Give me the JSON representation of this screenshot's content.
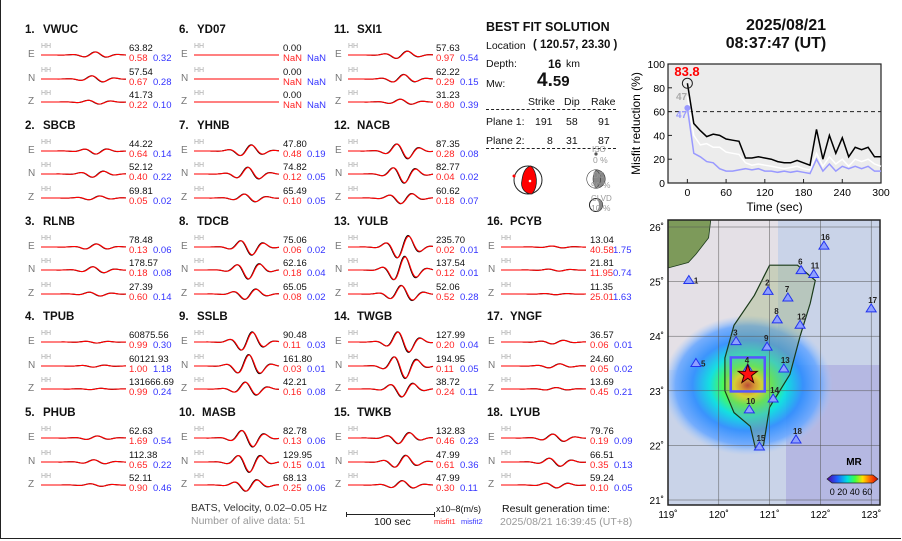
{
  "stations": [
    {
      "num": "1.",
      "name": "VWUC",
      "col": 0,
      "row": 0,
      "channels": [
        {
          "comp": "E",
          "band": "HH",
          "value": "63.82",
          "misfit1": "0.58",
          "misfit2": "0.32"
        },
        {
          "comp": "N",
          "band": "HH",
          "value": "57.54",
          "misfit1": "0.67",
          "misfit2": "0.28"
        },
        {
          "comp": "Z",
          "band": "HH",
          "value": "41.73",
          "misfit1": "0.22",
          "misfit2": "0.10"
        }
      ]
    },
    {
      "num": "2.",
      "name": "SBCB",
      "col": 0,
      "row": 1,
      "channels": [
        {
          "comp": "E",
          "band": "HH",
          "value": "44.22",
          "misfit1": "0.64",
          "misfit2": "0.14"
        },
        {
          "comp": "N",
          "band": "HH",
          "value": "52.12",
          "misfit1": "0.40",
          "misfit2": "0.22"
        },
        {
          "comp": "Z",
          "band": "HH",
          "value": "69.81",
          "misfit1": "0.05",
          "misfit2": "0.02"
        }
      ]
    },
    {
      "num": "3.",
      "name": "RLNB",
      "col": 0,
      "row": 2,
      "channels": [
        {
          "comp": "E",
          "band": "HH",
          "value": "78.48",
          "misfit1": "0.13",
          "misfit2": "0.06"
        },
        {
          "comp": "N",
          "band": "HH",
          "value": "178.57",
          "misfit1": "0.18",
          "misfit2": "0.08"
        },
        {
          "comp": "Z",
          "band": "HH",
          "value": "27.39",
          "misfit1": "0.60",
          "misfit2": "0.14"
        }
      ]
    },
    {
      "num": "4.",
      "name": "TPUB",
      "col": 0,
      "row": 3,
      "channels": [
        {
          "comp": "E",
          "band": "HH",
          "value": "60875.56",
          "misfit1": "0.99",
          "misfit2": "0.30"
        },
        {
          "comp": "N",
          "band": "HH",
          "value": "60121.93",
          "misfit1": "1.00",
          "misfit2": "1.18"
        },
        {
          "comp": "Z",
          "band": "HH",
          "value": "131666.69",
          "misfit1": "0.99",
          "misfit2": "0.24"
        }
      ]
    },
    {
      "num": "5.",
      "name": "PHUB",
      "col": 0,
      "row": 4,
      "channels": [
        {
          "comp": "E",
          "band": "HH",
          "value": "62.63",
          "misfit1": "1.69",
          "misfit2": "0.54"
        },
        {
          "comp": "N",
          "band": "HH",
          "value": "112.38",
          "misfit1": "0.65",
          "misfit2": "0.22"
        },
        {
          "comp": "Z",
          "band": "HH",
          "value": "52.11",
          "misfit1": "0.90",
          "misfit2": "0.46"
        }
      ]
    },
    {
      "num": "6.",
      "name": "YD07",
      "col": 1,
      "row": 0,
      "channels": [
        {
          "comp": "E",
          "band": "HH",
          "value": "0.00",
          "misfit1": "NaN",
          "misfit2": "NaN"
        },
        {
          "comp": "N",
          "band": "HH",
          "value": "0.00",
          "misfit1": "NaN",
          "misfit2": "NaN"
        },
        {
          "comp": "Z",
          "band": "HH",
          "value": "0.00",
          "misfit1": "NaN",
          "misfit2": "NaN"
        }
      ]
    },
    {
      "num": "7.",
      "name": "YHNB",
      "col": 1,
      "row": 1,
      "channels": [
        {
          "comp": "E",
          "band": "HH",
          "value": "47.80",
          "misfit1": "0.48",
          "misfit2": "0.19"
        },
        {
          "comp": "N",
          "band": "HH",
          "value": "74.82",
          "misfit1": "0.12",
          "misfit2": "0.05"
        },
        {
          "comp": "Z",
          "band": "HH",
          "value": "65.49",
          "misfit1": "0.10",
          "misfit2": "0.05"
        }
      ]
    },
    {
      "num": "8.",
      "name": "TDCB",
      "col": 1,
      "row": 2,
      "channels": [
        {
          "comp": "E",
          "band": "HH",
          "value": "75.06",
          "misfit1": "0.06",
          "misfit2": "0.02"
        },
        {
          "comp": "N",
          "band": "HH",
          "value": "62.16",
          "misfit1": "0.18",
          "misfit2": "0.04"
        },
        {
          "comp": "Z",
          "band": "HH",
          "value": "65.05",
          "misfit1": "0.08",
          "misfit2": "0.02"
        }
      ]
    },
    {
      "num": "9.",
      "name": "SSLB",
      "col": 1,
      "row": 3,
      "channels": [
        {
          "comp": "E",
          "band": "HH",
          "value": "90.48",
          "misfit1": "0.11",
          "misfit2": "0.03"
        },
        {
          "comp": "N",
          "band": "HH",
          "value": "161.80",
          "misfit1": "0.03",
          "misfit2": "0.01"
        },
        {
          "comp": "Z",
          "band": "HH",
          "value": "42.21",
          "misfit1": "0.16",
          "misfit2": "0.08"
        }
      ]
    },
    {
      "num": "10.",
      "name": "MASB",
      "col": 1,
      "row": 4,
      "channels": [
        {
          "comp": "E",
          "band": "HH",
          "value": "82.78",
          "misfit1": "0.13",
          "misfit2": "0.06"
        },
        {
          "comp": "N",
          "band": "HH",
          "value": "129.95",
          "misfit1": "0.15",
          "misfit2": "0.01"
        },
        {
          "comp": "Z",
          "band": "HH",
          "value": "68.13",
          "misfit1": "0.25",
          "misfit2": "0.06"
        }
      ]
    },
    {
      "num": "11.",
      "name": "SXI1",
      "col": 2,
      "row": 0,
      "channels": [
        {
          "comp": "E",
          "band": "HH",
          "value": "57.63",
          "misfit1": "0.97",
          "misfit2": "0.54"
        },
        {
          "comp": "N",
          "band": "HH",
          "value": "62.22",
          "misfit1": "0.29",
          "misfit2": "0.15"
        },
        {
          "comp": "Z",
          "band": "HH",
          "value": "31.23",
          "misfit1": "0.80",
          "misfit2": "0.39"
        }
      ]
    },
    {
      "num": "12.",
      "name": "NACB",
      "col": 2,
      "row": 1,
      "channels": [
        {
          "comp": "E",
          "band": "HH",
          "value": "87.35",
          "misfit1": "0.28",
          "misfit2": "0.08"
        },
        {
          "comp": "N",
          "band": "HH",
          "value": "82.77",
          "misfit1": "0.04",
          "misfit2": "0.02"
        },
        {
          "comp": "Z",
          "band": "HH",
          "value": "60.62",
          "misfit1": "0.18",
          "misfit2": "0.07"
        }
      ]
    },
    {
      "num": "13.",
      "name": "YULB",
      "col": 2,
      "row": 2,
      "channels": [
        {
          "comp": "E",
          "band": "HH",
          "value": "235.70",
          "misfit1": "0.02",
          "misfit2": "0.01"
        },
        {
          "comp": "N",
          "band": "HH",
          "value": "137.54",
          "misfit1": "0.12",
          "misfit2": "0.01"
        },
        {
          "comp": "Z",
          "band": "HH",
          "value": "52.06",
          "misfit1": "0.52",
          "misfit2": "0.28"
        }
      ]
    },
    {
      "num": "14.",
      "name": "TWGB",
      "col": 2,
      "row": 3,
      "channels": [
        {
          "comp": "E",
          "band": "HH",
          "value": "127.99",
          "misfit1": "0.20",
          "misfit2": "0.04"
        },
        {
          "comp": "N",
          "band": "HH",
          "value": "194.95",
          "misfit1": "0.11",
          "misfit2": "0.05"
        },
        {
          "comp": "Z",
          "band": "HH",
          "value": "38.72",
          "misfit1": "0.24",
          "misfit2": "0.11"
        }
      ]
    },
    {
      "num": "15.",
      "name": "TWKB",
      "col": 2,
      "row": 4,
      "channels": [
        {
          "comp": "E",
          "band": "HH",
          "value": "132.83",
          "misfit1": "0.46",
          "misfit2": "0.23"
        },
        {
          "comp": "N",
          "band": "HH",
          "value": "47.99",
          "misfit1": "0.61",
          "misfit2": "0.36"
        },
        {
          "comp": "Z",
          "band": "HH",
          "value": "47.99",
          "misfit1": "0.30",
          "misfit2": "0.11"
        }
      ]
    },
    {
      "num": "16.",
      "name": "PCYB",
      "col": 3,
      "row": 2,
      "channels": [
        {
          "comp": "E",
          "band": "HH",
          "value": "13.04",
          "misfit1": "40.58",
          "misfit2": "1.75"
        },
        {
          "comp": "N",
          "band": "HH",
          "value": "21.81",
          "misfit1": "11.95",
          "misfit2": "0.74"
        },
        {
          "comp": "Z",
          "band": "HH",
          "value": "11.35",
          "misfit1": "25.01",
          "misfit2": "1.63"
        }
      ]
    },
    {
      "num": "17.",
      "name": "YNGF",
      "col": 3,
      "row": 3,
      "channels": [
        {
          "comp": "E",
          "band": "HH",
          "value": "36.57",
          "misfit1": "0.06",
          "misfit2": "0.01"
        },
        {
          "comp": "N",
          "band": "HH",
          "value": "24.60",
          "misfit1": "0.05",
          "misfit2": "0.02"
        },
        {
          "comp": "Z",
          "band": "HH",
          "value": "13.69",
          "misfit1": "0.45",
          "misfit2": "0.21"
        }
      ]
    },
    {
      "num": "18.",
      "name": "LYUB",
      "col": 3,
      "row": 4,
      "channels": [
        {
          "comp": "E",
          "band": "HH",
          "value": "79.76",
          "misfit1": "0.19",
          "misfit2": "0.09"
        },
        {
          "comp": "N",
          "band": "HH",
          "value": "66.51",
          "misfit1": "0.35",
          "misfit2": "0.13"
        },
        {
          "comp": "Z",
          "band": "HH",
          "value": "59.24",
          "misfit1": "0.10",
          "misfit2": "0.05"
        }
      ]
    }
  ],
  "footer": {
    "network": "BATS, Velocity, 0.02–0.05 Hz",
    "alive": "Number of alive data: 51",
    "scale_bar": "100 sec",
    "units": "x10–8(m/s)",
    "misfit1": "misfit1",
    "misfit2": "misfit2",
    "gen_label": "Result generation time:",
    "gen_time": "2025/08/21 16:39:45 (UT+8)"
  },
  "solution": {
    "title": "BEST FIT SOLUTION",
    "location_label": "Location",
    "location": "( 120.57,  23.30 )",
    "depth_label": "Depth:",
    "depth": "16",
    "depth_unit": "km",
    "mw_label": "Mw:",
    "mw_int": "4.",
    "mw_dec": "59",
    "headers": [
      "Strike",
      "Dip",
      "Rake"
    ],
    "planes": [
      {
        "label": "Plane 1:",
        "strike": "191",
        "dip": "58",
        "rake": "91"
      },
      {
        "label": "Plane 2:",
        "strike": "8",
        "dip": "31",
        "rake": "87"
      }
    ],
    "iso_label": "ISO",
    "iso": "0  %",
    "dc_label": "DC",
    "dc": "90 %",
    "clvd_label": "CLVD",
    "clvd": "10 %"
  },
  "event": {
    "date": "2025/08/21",
    "time": "08:37:47  (UT)"
  },
  "colors": {
    "observed": "#000000",
    "synthetic": "#ff0000",
    "misfit1": "#ff2222",
    "misfit2": "#3333ff",
    "beachball": "#ff0000",
    "station": "#3344ff"
  },
  "chart_data": {
    "type": "line",
    "xlabel": "Time (sec)",
    "ylabel": "Misfit reduction (%)",
    "xlim": [
      -30,
      300
    ],
    "ylim": [
      0,
      100
    ],
    "xticks": [
      "0",
      "60",
      "120",
      "180",
      "240",
      "300"
    ],
    "yticks": [
      "0",
      "20",
      "40",
      "60",
      "80",
      "100"
    ],
    "threshold": 60,
    "peak_label": "83.8",
    "label_white": "47",
    "label_blue": "47",
    "x": [
      0,
      10,
      20,
      30,
      40,
      50,
      60,
      70,
      80,
      90,
      100,
      110,
      120,
      130,
      140,
      150,
      160,
      170,
      180,
      190,
      200,
      210,
      220,
      230,
      240,
      250,
      260,
      270,
      280,
      290,
      300
    ],
    "series": [
      {
        "color": "#000000",
        "values": [
          83.8,
          50,
          44,
          39,
          41,
          40,
          37,
          36,
          35,
          21,
          21,
          22,
          21,
          20,
          18,
          17,
          17,
          19,
          17,
          15,
          45,
          20,
          40,
          25,
          38,
          22,
          30,
          28,
          30,
          22,
          22
        ]
      },
      {
        "color": "#ffffff",
        "values": [
          73,
          40,
          32,
          33,
          30,
          30,
          26,
          25,
          24,
          17,
          15,
          16,
          15,
          14,
          13,
          12,
          13,
          14,
          12,
          11,
          25,
          14,
          22,
          16,
          20,
          14,
          20,
          18,
          20,
          16,
          14
        ]
      },
      {
        "color": "#9999ff",
        "values": [
          63,
          25,
          22,
          18,
          17,
          12,
          10,
          10,
          11,
          12,
          11,
          12,
          10,
          10,
          9,
          10,
          9,
          10,
          9,
          8,
          20,
          10,
          16,
          10,
          14,
          12,
          14,
          12,
          14,
          10,
          10
        ]
      }
    ]
  },
  "map": {
    "lon_ticks": [
      "119˚",
      "120˚",
      "121˚",
      "122˚",
      "123˚"
    ],
    "lat_ticks": [
      "21˚",
      "22˚",
      "23˚",
      "24˚",
      "25˚",
      "26˚"
    ],
    "colorbar_title": "MR",
    "colorbar_ticks": "0 20 40 60",
    "epicenter": {
      "lon": 120.57,
      "lat": 23.3
    },
    "station_marks": [
      {
        "label": "1",
        "lon": 119.41,
        "lat": 25.02
      },
      {
        "label": "2",
        "lon": 120.97,
        "lat": 24.82
      },
      {
        "label": "3",
        "lon": 120.34,
        "lat": 23.9
      },
      {
        "label": "4",
        "lon": 120.57,
        "lat": 23.4
      },
      {
        "label": "5",
        "lon": 119.55,
        "lat": 23.5
      },
      {
        "label": "6",
        "lon": 121.62,
        "lat": 25.2
      },
      {
        "label": "7",
        "lon": 121.36,
        "lat": 24.7
      },
      {
        "label": "8",
        "lon": 121.15,
        "lat": 24.3
      },
      {
        "label": "9",
        "lon": 120.95,
        "lat": 23.8
      },
      {
        "label": "10",
        "lon": 120.6,
        "lat": 22.65
      },
      {
        "label": "11",
        "lon": 121.87,
        "lat": 25.13
      },
      {
        "label": "12",
        "lon": 121.6,
        "lat": 24.2
      },
      {
        "label": "13",
        "lon": 121.28,
        "lat": 23.4
      },
      {
        "label": "14",
        "lon": 121.07,
        "lat": 22.85
      },
      {
        "label": "15",
        "lon": 120.8,
        "lat": 21.97
      },
      {
        "label": "16",
        "lon": 122.07,
        "lat": 25.65
      },
      {
        "label": "17",
        "lon": 123.0,
        "lat": 24.5
      },
      {
        "label": "18",
        "lon": 121.52,
        "lat": 22.1
      }
    ]
  }
}
